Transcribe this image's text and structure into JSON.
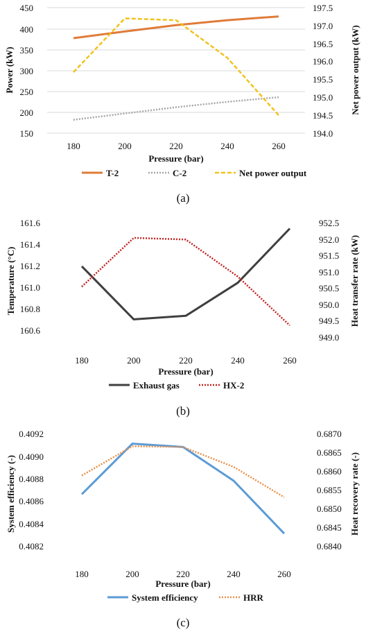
{
  "chart_data": [
    {
      "type": "line",
      "panel_label": "(a)",
      "x": [
        180,
        200,
        220,
        240,
        260
      ],
      "xlabel": "Pressure (bar)",
      "ylabel_left": "Power (kW)",
      "ylabel_right": "Net power output (kW)",
      "ylim_left": [
        150,
        450
      ],
      "yticks_left": [
        "150",
        "200",
        "250",
        "300",
        "350",
        "400",
        "450"
      ],
      "ylim_right": [
        194.0,
        197.5
      ],
      "yticks_right": [
        "194.0",
        "194.5",
        "195.0",
        "195.5",
        "196.0",
        "196.5",
        "197.0",
        "197.5"
      ],
      "xticks": [
        "180",
        "200",
        "220",
        "240",
        "260"
      ],
      "grid": "horizontal",
      "legend_position": "bottom",
      "series": [
        {
          "name": "T-2",
          "axis": "left",
          "color": "#e07b39",
          "style": "solid",
          "values": [
            377,
            393,
            408,
            420,
            429
          ]
        },
        {
          "name": "C-2",
          "axis": "left",
          "color": "#a6a6a6",
          "style": "dotted",
          "values": [
            182,
            197,
            212,
            225,
            236
          ]
        },
        {
          "name": "Net power output",
          "axis": "right",
          "color": "#f2c21b",
          "style": "dashed",
          "values": [
            195.7,
            197.2,
            197.15,
            196.1,
            194.5
          ]
        }
      ]
    },
    {
      "type": "line",
      "panel_label": "(b)",
      "x": [
        180,
        200,
        220,
        240,
        260
      ],
      "xlabel": "Pressure (bar)",
      "ylabel_left": "Temperature (°C)",
      "ylabel_right": "Heat transfer rate (kW)",
      "ylim_left": [
        160.6,
        161.6
      ],
      "yticks_left": [
        "160.6",
        "160.8",
        "161.0",
        "161.2",
        "161.4",
        "161.6"
      ],
      "ylim_right": [
        949.0,
        952.5
      ],
      "yticks_right": [
        "949.0",
        "949.5",
        "950.0",
        "950.5",
        "951.0",
        "951.5",
        "952.0",
        "952.5"
      ],
      "xticks": [
        "180",
        "200",
        "220",
        "240",
        "260"
      ],
      "grid": "none",
      "legend_position": "bottom",
      "series": [
        {
          "name": "Exhaust gas",
          "axis": "left",
          "color": "#3f3f3f",
          "style": "solid",
          "values": [
            161.23,
            160.78,
            160.81,
            161.09,
            161.55
          ]
        },
        {
          "name": "HX-2",
          "axis": "right",
          "color": "#c0211f",
          "style": "dotted",
          "values": [
            950.6,
            952.05,
            952.0,
            950.9,
            949.45
          ]
        }
      ]
    },
    {
      "type": "line",
      "panel_label": "(c)",
      "x": [
        180,
        200,
        220,
        240,
        260
      ],
      "xlabel": "Pressure (bar)",
      "ylabel_left": "System efficiency (-)",
      "ylabel_right": "Heat recovery rate (-)",
      "ylim_left": [
        0.4082,
        0.4092
      ],
      "yticks_left": [
        "0.4082",
        "0.4084",
        "0.4086",
        "0.4088",
        "0.4090",
        "0.4092"
      ],
      "ylim_right": [
        0.684,
        0.687
      ],
      "yticks_right": [
        "0.6840",
        "0.6845",
        "0.6850",
        "0.6855",
        "0.6860",
        "0.6865",
        "0.6870"
      ],
      "xticks": [
        "180",
        "200",
        "220",
        "240",
        "260"
      ],
      "grid": "none",
      "legend_position": "bottom",
      "series": [
        {
          "name": "System efficiency",
          "axis": "left",
          "color": "#5b9bd5",
          "style": "solid",
          "values": [
            0.40866,
            0.40911,
            0.40908,
            0.40878,
            0.40831
          ]
        },
        {
          "name": "HRR",
          "axis": "right",
          "color": "#e8904a",
          "style": "dotted",
          "values": [
            0.68588,
            0.68666,
            0.68664,
            0.68611,
            0.6853
          ]
        }
      ]
    }
  ]
}
